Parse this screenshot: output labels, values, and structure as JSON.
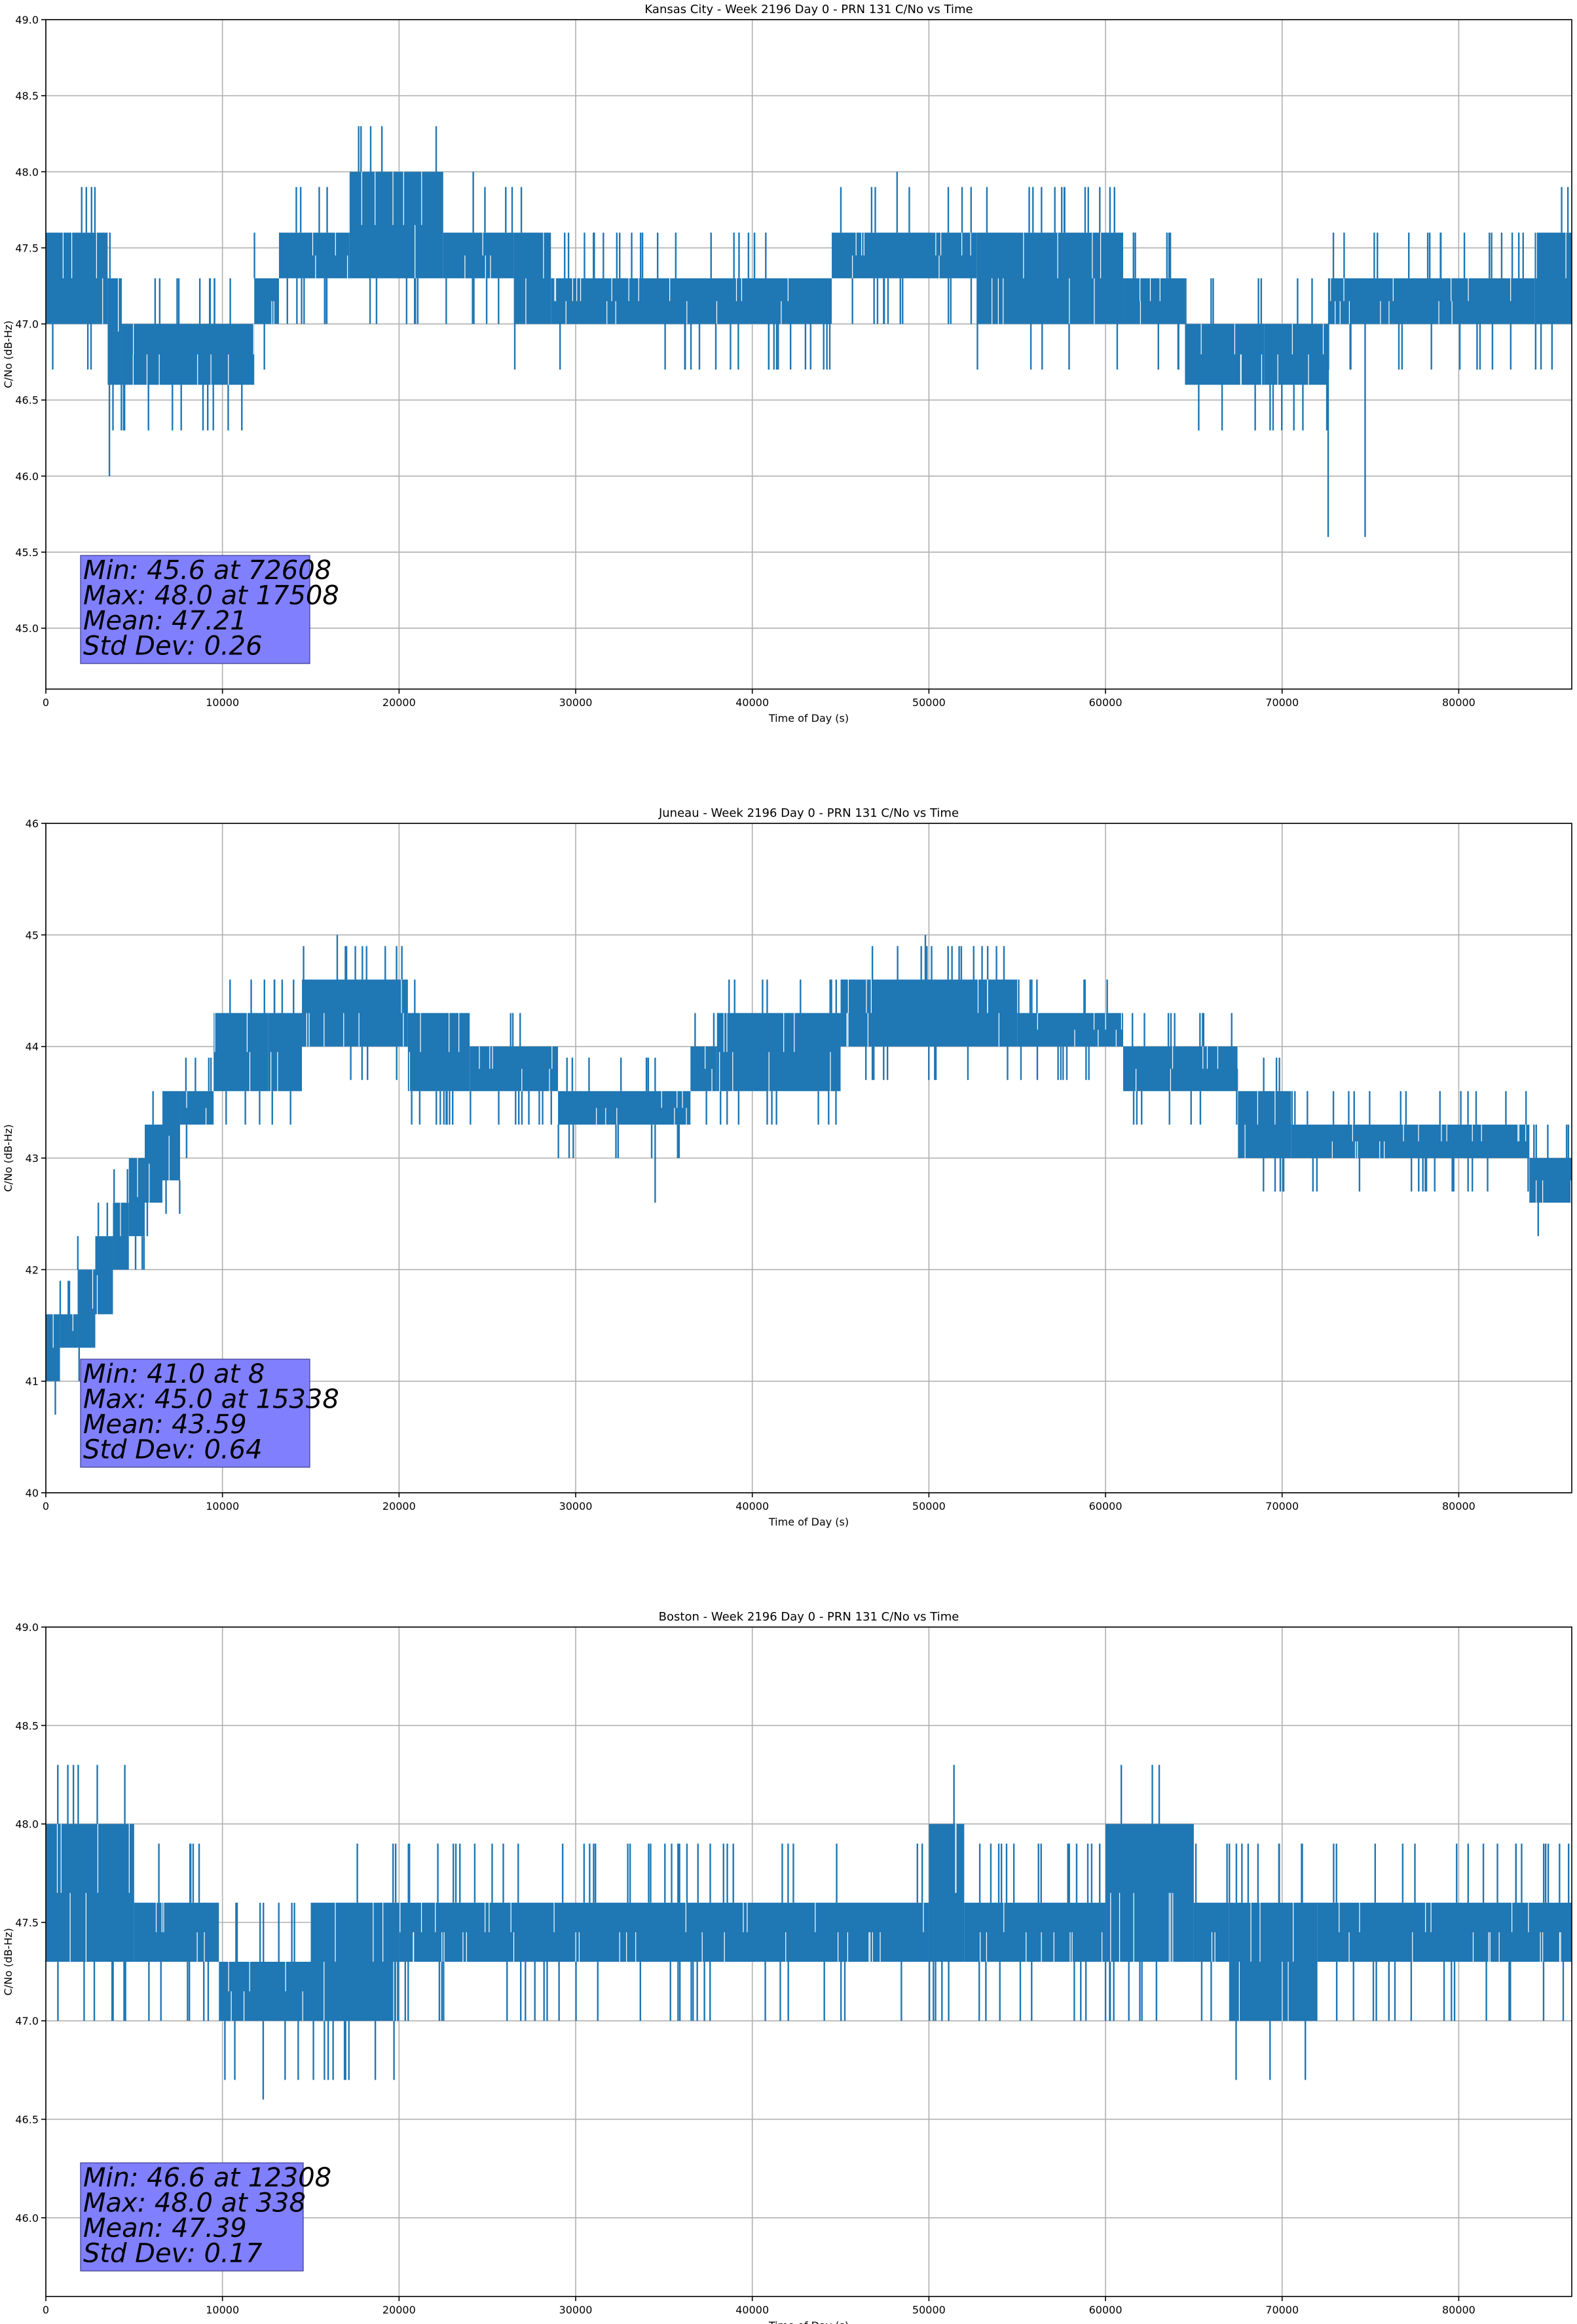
{
  "chart_data": [
    {
      "type": "line",
      "title": "Kansas City - Week 2196 Day 0 - PRN 131 C/No vs Time",
      "xlabel": "Time of Day (s)",
      "ylabel": "C/No (dB-Hz)",
      "xlim": [
        0,
        86400
      ],
      "ylim": [
        44.6,
        49.0
      ],
      "xticks": [
        0,
        10000,
        20000,
        30000,
        40000,
        50000,
        60000,
        70000,
        80000
      ],
      "yticks": [
        45.0,
        45.5,
        46.0,
        46.5,
        47.0,
        47.5,
        48.0,
        48.5,
        49.0
      ],
      "ytick_decimals": 1,
      "grid": true,
      "line_color": "#1f77b4",
      "series": [
        {
          "values_envelope": [
            {
              "x0": 0,
              "x1": 3500,
              "lo": 47.0,
              "hi": 47.6
            },
            {
              "x0": 3500,
              "x1": 4300,
              "lo": 46.6,
              "hi": 47.3
            },
            {
              "x0": 4300,
              "x1": 11800,
              "lo": 46.6,
              "hi": 47.0
            },
            {
              "x0": 11800,
              "x1": 13200,
              "lo": 47.0,
              "hi": 47.3
            },
            {
              "x0": 13200,
              "x1": 17200,
              "lo": 47.3,
              "hi": 47.6
            },
            {
              "x0": 17200,
              "x1": 22500,
              "lo": 47.3,
              "hi": 48.0
            },
            {
              "x0": 22500,
              "x1": 26500,
              "lo": 47.3,
              "hi": 47.6
            },
            {
              "x0": 26500,
              "x1": 28600,
              "lo": 47.0,
              "hi": 47.6
            },
            {
              "x0": 28600,
              "x1": 44500,
              "lo": 47.0,
              "hi": 47.3
            },
            {
              "x0": 44500,
              "x1": 52700,
              "lo": 47.3,
              "hi": 47.6
            },
            {
              "x0": 52700,
              "x1": 61000,
              "lo": 47.0,
              "hi": 47.6
            },
            {
              "x0": 61000,
              "x1": 64500,
              "lo": 47.0,
              "hi": 47.3
            },
            {
              "x0": 64500,
              "x1": 69000,
              "lo": 46.6,
              "hi": 47.0
            },
            {
              "x0": 69000,
              "x1": 72600,
              "lo": 46.6,
              "hi": 47.0
            },
            {
              "x0": 72600,
              "x1": 84300,
              "lo": 47.0,
              "hi": 47.3
            },
            {
              "x0": 84300,
              "x1": 86400,
              "lo": 47.0,
              "hi": 47.6
            }
          ],
          "spikes": [
            {
              "x": 3600,
              "y": 46.0
            },
            {
              "x": 48200,
              "y": 48.0
            },
            {
              "x": 72608,
              "y": 45.6
            },
            {
              "x": 74700,
              "y": 45.6
            },
            {
              "x": 24200,
              "y": 48.0
            }
          ]
        }
      ]
    },
    {
      "type": "line",
      "title": "Juneau - Week 2196 Day 0 - PRN 131 C/No vs Time",
      "xlabel": "Time of Day (s)",
      "ylabel": "C/No (dB-Hz)",
      "xlim": [
        0,
        86400
      ],
      "ylim": [
        40,
        46
      ],
      "xticks": [
        0,
        10000,
        20000,
        30000,
        40000,
        50000,
        60000,
        70000,
        80000
      ],
      "yticks": [
        40,
        41,
        42,
        43,
        44,
        45,
        46
      ],
      "ytick_decimals": 0,
      "grid": true,
      "line_color": "#1f77b4",
      "series": [
        {
          "values_envelope": [
            {
              "x0": 0,
              "x1": 800,
              "lo": 41.0,
              "hi": 41.6
            },
            {
              "x0": 800,
              "x1": 1800,
              "lo": 41.3,
              "hi": 41.6
            },
            {
              "x0": 1800,
              "x1": 2800,
              "lo": 41.3,
              "hi": 42.0
            },
            {
              "x0": 2800,
              "x1": 3800,
              "lo": 41.6,
              "hi": 42.3
            },
            {
              "x0": 3800,
              "x1": 4700,
              "lo": 42.0,
              "hi": 42.6
            },
            {
              "x0": 4700,
              "x1": 5600,
              "lo": 42.3,
              "hi": 43.0
            },
            {
              "x0": 5600,
              "x1": 6600,
              "lo": 42.6,
              "hi": 43.3
            },
            {
              "x0": 6600,
              "x1": 7600,
              "lo": 42.8,
              "hi": 43.6
            },
            {
              "x0": 7600,
              "x1": 9500,
              "lo": 43.3,
              "hi": 43.6
            },
            {
              "x0": 9500,
              "x1": 12600,
              "lo": 43.6,
              "hi": 44.3
            },
            {
              "x0": 12600,
              "x1": 14500,
              "lo": 43.6,
              "hi": 44.3
            },
            {
              "x0": 14500,
              "x1": 20500,
              "lo": 44.0,
              "hi": 44.6
            },
            {
              "x0": 20500,
              "x1": 24000,
              "lo": 43.6,
              "hi": 44.3
            },
            {
              "x0": 24000,
              "x1": 29000,
              "lo": 43.6,
              "hi": 44.0
            },
            {
              "x0": 29000,
              "x1": 36500,
              "lo": 43.3,
              "hi": 43.6
            },
            {
              "x0": 36500,
              "x1": 38000,
              "lo": 43.6,
              "hi": 44.0
            },
            {
              "x0": 38000,
              "x1": 45000,
              "lo": 43.6,
              "hi": 44.3
            },
            {
              "x0": 45000,
              "x1": 55000,
              "lo": 44.0,
              "hi": 44.6
            },
            {
              "x0": 55000,
              "x1": 61000,
              "lo": 44.0,
              "hi": 44.3
            },
            {
              "x0": 61000,
              "x1": 67500,
              "lo": 43.6,
              "hi": 44.0
            },
            {
              "x0": 67500,
              "x1": 70500,
              "lo": 43.0,
              "hi": 43.6
            },
            {
              "x0": 70500,
              "x1": 84000,
              "lo": 43.0,
              "hi": 43.3
            },
            {
              "x0": 84000,
              "x1": 86400,
              "lo": 42.6,
              "hi": 43.0
            }
          ],
          "spikes": [
            {
              "x": 16500,
              "y": 45.0
            },
            {
              "x": 49800,
              "y": 45.0
            },
            {
              "x": 34500,
              "y": 42.6
            },
            {
              "x": 8,
              "y": 41.0
            }
          ]
        }
      ]
    },
    {
      "type": "line",
      "title": "Boston - Week 2196 Day 0 - PRN 131 C/No vs Time",
      "xlabel": "Time of Day (s)",
      "ylabel": "C/No (dB-Hz)",
      "xlim": [
        0,
        86400
      ],
      "ylim": [
        45.6,
        49.0
      ],
      "xticks": [
        0,
        10000,
        20000,
        30000,
        40000,
        50000,
        60000,
        70000,
        80000
      ],
      "yticks": [
        46.0,
        46.5,
        47.0,
        47.5,
        48.0,
        48.5,
        49.0
      ],
      "ytick_decimals": 1,
      "grid": true,
      "line_color": "#1f77b4",
      "series": [
        {
          "values_envelope": [
            {
              "x0": 0,
              "x1": 5000,
              "lo": 47.3,
              "hi": 48.0
            },
            {
              "x0": 5000,
              "x1": 9800,
              "lo": 47.3,
              "hi": 47.6
            },
            {
              "x0": 9800,
              "x1": 15000,
              "lo": 47.0,
              "hi": 47.3
            },
            {
              "x0": 15000,
              "x1": 20000,
              "lo": 47.0,
              "hi": 47.6
            },
            {
              "x0": 20000,
              "x1": 50000,
              "lo": 47.3,
              "hi": 47.6
            },
            {
              "x0": 50000,
              "x1": 52000,
              "lo": 47.3,
              "hi": 48.0
            },
            {
              "x0": 52000,
              "x1": 60000,
              "lo": 47.3,
              "hi": 47.6
            },
            {
              "x0": 60000,
              "x1": 65000,
              "lo": 47.3,
              "hi": 48.0
            },
            {
              "x0": 65000,
              "x1": 67000,
              "lo": 47.3,
              "hi": 47.6
            },
            {
              "x0": 67000,
              "x1": 72000,
              "lo": 47.0,
              "hi": 47.6
            },
            {
              "x0": 72000,
              "x1": 86400,
              "lo": 47.3,
              "hi": 47.6
            }
          ],
          "spikes": [
            {
              "x": 12308,
              "y": 46.6
            },
            {
              "x": 338,
              "y": 48.0
            }
          ]
        }
      ]
    }
  ],
  "stats": [
    {
      "min": "Min: 45.6 at 72608",
      "max": "Max: 48.0 at 17508",
      "mean": "Mean: 47.21",
      "std": "Std Dev: 0.26"
    },
    {
      "min": "Min: 41.0 at 8",
      "max": "Max: 45.0 at 15338",
      "mean": "Mean: 43.59",
      "std": "Std Dev: 0.64"
    },
    {
      "min": "Min: 46.6 at 12308",
      "max": "Max: 48.0 at 338",
      "mean": "Mean: 47.39",
      "std": "Std Dev: 0.17"
    }
  ]
}
